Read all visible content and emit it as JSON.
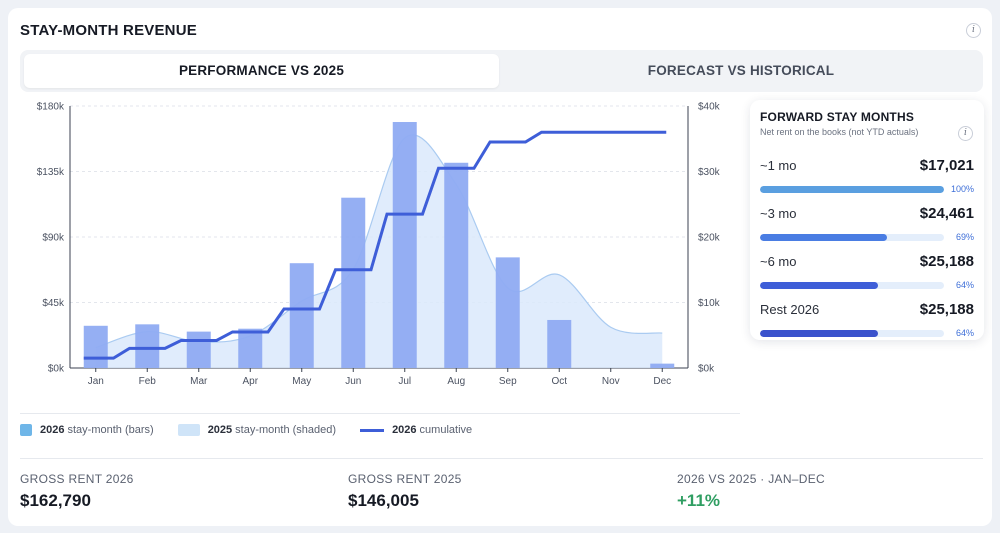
{
  "header": {
    "title": "STAY-MONTH REVENUE",
    "info_glyph": "i"
  },
  "tabs": [
    {
      "label": "PERFORMANCE VS 2025",
      "active": true
    },
    {
      "label": "FORECAST VS HISTORICAL",
      "active": false
    }
  ],
  "chart_data": {
    "type": "bar",
    "categories": [
      "Jan",
      "Feb",
      "Mar",
      "Apr",
      "May",
      "Jun",
      "Jul",
      "Aug",
      "Sep",
      "Oct",
      "Nov",
      "Dec"
    ],
    "ylim": [
      0,
      180000
    ],
    "y2lim": [
      0,
      40000
    ],
    "yticks": [
      "$0k",
      "$45k",
      "$90k",
      "$135k",
      "$180k"
    ],
    "y2ticks": [
      "$0k",
      "$10k",
      "$20k",
      "$30k",
      "$40k"
    ],
    "grid": true,
    "series": [
      {
        "name": "2026 stay-month (bars)",
        "kind": "bar",
        "color": "#8fabf2",
        "values": [
          29000,
          30000,
          25000,
          27000,
          72000,
          117000,
          169000,
          141000,
          76000,
          33000,
          0,
          3000
        ]
      },
      {
        "name": "2025 stay-month (shaded)",
        "kind": "area",
        "color": "#dbe9fb",
        "stroke": "#aacbf1",
        "values": [
          14000,
          25000,
          18000,
          22000,
          46000,
          68000,
          158000,
          126000,
          55000,
          64000,
          28000,
          24000
        ]
      },
      {
        "name": "2026 cumulative",
        "kind": "step",
        "axis": "right",
        "color": "#3e5ed8",
        "values": [
          1500,
          3000,
          4200,
          5500,
          9000,
          15000,
          23500,
          30500,
          34500,
          36000,
          36000,
          36000
        ]
      }
    ]
  },
  "legend": [
    {
      "year": "2026",
      "text": "stay-month (bars)"
    },
    {
      "year": "2025",
      "text": "stay-month (shaded)"
    },
    {
      "year": "2026",
      "text": "cumulative"
    }
  ],
  "kpis": [
    {
      "label": "GROSS RENT 2026",
      "value": "$162,790"
    },
    {
      "label": "GROSS RENT 2025",
      "value": "$146,005"
    },
    {
      "label": "2026 VS 2025 · JAN–DEC",
      "value": "+11%"
    }
  ],
  "forward": {
    "title": "FORWARD STAY MONTHS",
    "subtitle": "Net rent on the books (not YTD actuals)",
    "rows": [
      {
        "label": "~1 mo",
        "value": "$17,021",
        "pct": "100%",
        "fraction": 1.0,
        "color": "#5a9fe0"
      },
      {
        "label": "~3 mo",
        "value": "$24,461",
        "pct": "69%",
        "fraction": 0.69,
        "color": "#4a7de3"
      },
      {
        "label": "~6 mo",
        "value": "$25,188",
        "pct": "64%",
        "fraction": 0.64,
        "color": "#3e5ed8"
      },
      {
        "label": "Rest 2026",
        "value": "$25,188",
        "pct": "64%",
        "fraction": 0.64,
        "color": "#3a52cc"
      }
    ]
  }
}
